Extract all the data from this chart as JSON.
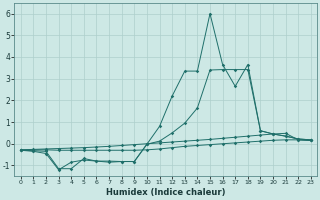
{
  "xlabel": "Humidex (Indice chaleur)",
  "x": [
    0,
    1,
    2,
    3,
    4,
    5,
    6,
    7,
    8,
    9,
    10,
    11,
    12,
    13,
    14,
    15,
    16,
    17,
    18,
    19,
    20,
    21,
    22,
    23
  ],
  "line1": [
    -0.3,
    -0.35,
    -0.45,
    -1.2,
    -0.85,
    -0.75,
    -0.8,
    -0.8,
    -0.82,
    -0.82,
    -0.02,
    0.8,
    2.2,
    3.35,
    3.35,
    6.0,
    3.65,
    2.65,
    3.65,
    0.6,
    0.45,
    0.35,
    0.22,
    0.18
  ],
  "line2": [
    -0.3,
    -0.32,
    -0.35,
    -1.15,
    -1.15,
    -0.68,
    -0.8,
    -0.85,
    -0.82,
    -0.82,
    -0.02,
    0.12,
    0.5,
    0.95,
    1.65,
    3.4,
    3.42,
    3.42,
    3.42,
    0.6,
    0.45,
    0.35,
    0.22,
    0.18
  ],
  "line3": [
    -0.28,
    -0.26,
    -0.24,
    -0.22,
    -0.2,
    -0.18,
    -0.15,
    -0.12,
    -0.08,
    -0.04,
    0.0,
    0.04,
    0.08,
    0.12,
    0.16,
    0.2,
    0.25,
    0.3,
    0.35,
    0.4,
    0.45,
    0.48,
    0.18,
    0.15
  ],
  "line4": [
    -0.28,
    -0.28,
    -0.28,
    -0.3,
    -0.3,
    -0.3,
    -0.3,
    -0.3,
    -0.3,
    -0.3,
    -0.28,
    -0.24,
    -0.18,
    -0.12,
    -0.08,
    -0.04,
    0.0,
    0.04,
    0.08,
    0.12,
    0.16,
    0.18,
    0.18,
    0.15
  ],
  "line_color": "#1f6f6a",
  "bg_color": "#cde8e5",
  "grid_color": "#aecfcc",
  "ylim": [
    -1.5,
    6.5
  ],
  "yticks": [
    -1,
    0,
    1,
    2,
    3,
    4,
    5,
    6
  ],
  "xlim": [
    -0.5,
    23.5
  ]
}
